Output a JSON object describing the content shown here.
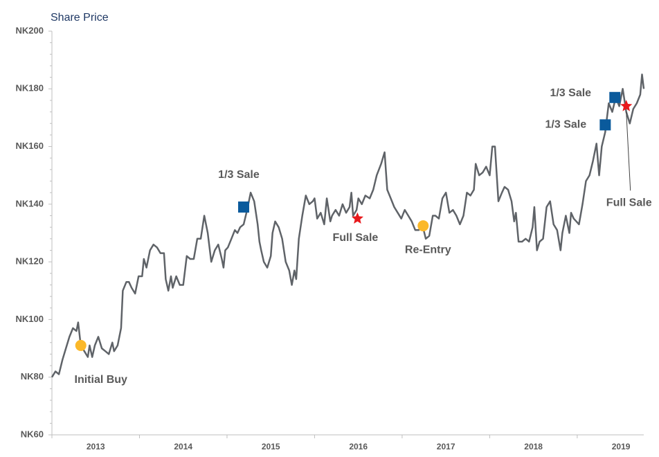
{
  "chart_data": {
    "type": "line",
    "title": "Share Price",
    "color": "#5f6368",
    "x": [
      2013.0,
      2013.04,
      2013.08,
      2013.12,
      2013.16,
      2013.2,
      2013.24,
      2013.28,
      2013.3,
      2013.33,
      2013.37,
      2013.41,
      2013.43,
      2013.46,
      2013.49,
      2013.53,
      2013.57,
      2013.61,
      2013.65,
      2013.69,
      2013.71,
      2013.75,
      2013.79,
      2013.81,
      2013.85,
      2013.88,
      2013.91,
      2013.95,
      2013.99,
      2014.03,
      2014.05,
      2014.08,
      2014.12,
      2014.16,
      2014.2,
      2014.24,
      2014.28,
      2014.3,
      2014.33,
      2014.36,
      2014.38,
      2014.42,
      2014.46,
      2014.5,
      2014.54,
      2014.58,
      2014.62,
      2014.66,
      2014.7,
      2014.74,
      2014.78,
      2014.82,
      2014.86,
      2014.9,
      2014.94,
      2014.96,
      2014.98,
      2015.01,
      2015.05,
      2015.09,
      2015.12,
      2015.15,
      2015.19,
      2015.23,
      2015.27,
      2015.31,
      2015.35,
      2015.37,
      2015.39,
      2015.42,
      2015.46,
      2015.5,
      2015.52,
      2015.55,
      2015.59,
      2015.63,
      2015.67,
      2015.71,
      2015.74,
      2015.77,
      2015.79,
      2015.82,
      2015.86,
      2015.9,
      2015.94,
      2015.98,
      2016.0,
      2016.03,
      2016.07,
      2016.11,
      2016.14,
      2016.18,
      2016.2,
      2016.24,
      2016.28,
      2016.32,
      2016.36,
      2016.4,
      2016.42,
      2016.44,
      2016.48,
      2016.5,
      2016.54,
      2016.58,
      2016.63,
      2016.67,
      2016.71,
      2016.76,
      2016.8,
      2016.83,
      2016.87,
      2016.91,
      2016.95,
      2016.99,
      2017.03,
      2017.07,
      2017.11,
      2017.15,
      2017.19,
      2017.23,
      2017.27,
      2017.31,
      2017.35,
      2017.38,
      2017.42,
      2017.46,
      2017.5,
      2017.54,
      2017.58,
      2017.62,
      2017.66,
      2017.7,
      2017.74,
      2017.78,
      2017.82,
      2017.84,
      2017.88,
      2017.92,
      2017.96,
      2018.0,
      2018.03,
      2018.06,
      2018.1,
      2018.14,
      2018.17,
      2018.21,
      2018.25,
      2018.28,
      2018.3,
      2018.33,
      2018.37,
      2018.41,
      2018.45,
      2018.49,
      2018.51,
      2018.54,
      2018.57,
      2018.61,
      2018.65,
      2018.69,
      2018.73,
      2018.77,
      2018.81,
      2018.83,
      2018.87,
      2018.91,
      2018.93,
      2018.96,
      2018.99,
      2019.02,
      2019.06,
      2019.1,
      2019.14,
      2019.18,
      2019.22,
      2019.25,
      2019.28,
      2019.32,
      2019.36,
      2019.4,
      2019.44,
      2019.48,
      2019.52,
      2019.56,
      2019.6,
      2019.64,
      2019.68,
      2019.72,
      2019.74,
      2019.76
    ],
    "values": [
      80,
      82,
      81,
      86,
      90,
      94,
      97,
      96,
      99,
      91,
      89,
      87,
      91,
      87,
      91,
      94,
      90,
      89,
      88,
      92,
      89,
      91,
      97,
      110,
      113,
      113,
      111,
      109,
      115,
      115,
      121,
      118,
      124,
      126,
      125,
      123,
      123,
      114,
      110,
      115,
      111,
      115,
      112,
      112,
      122,
      121,
      121,
      128,
      128,
      136,
      130,
      120,
      124,
      126,
      121,
      118,
      124,
      125,
      128,
      131,
      130,
      132,
      133,
      138,
      144,
      141,
      133,
      127,
      124,
      120,
      118,
      122,
      130,
      134,
      132,
      128,
      120,
      117,
      112,
      117,
      114,
      128,
      136,
      143,
      140,
      141,
      142,
      135,
      137,
      133,
      142,
      134,
      136,
      138,
      136,
      140,
      137,
      139,
      144,
      136,
      138,
      142,
      140,
      143,
      142,
      145,
      150,
      154,
      158,
      145,
      142,
      139,
      137,
      135,
      138,
      136,
      134,
      131,
      131,
      133,
      128,
      129,
      136,
      136,
      135,
      142,
      144,
      137,
      138,
      136,
      133,
      136,
      144,
      143,
      145,
      154,
      150,
      151,
      153,
      150,
      160,
      160,
      141,
      144,
      146,
      145,
      141,
      134,
      137,
      127,
      127,
      128,
      127,
      132,
      139,
      124,
      127,
      128,
      139,
      141,
      133,
      131,
      124,
      130,
      136,
      130,
      137,
      135,
      134,
      133,
      140,
      148,
      150,
      155,
      161,
      150,
      160,
      165,
      175,
      172,
      177,
      174,
      180,
      172,
      168,
      173,
      175,
      178,
      185,
      180
    ],
    "xlim": [
      2013,
      2019.76
    ],
    "xticks": [
      {
        "value": 2013.5,
        "label": "2013"
      },
      {
        "value": 2014.5,
        "label": "2014"
      },
      {
        "value": 2015.5,
        "label": "2015"
      },
      {
        "value": 2016.5,
        "label": "2016"
      },
      {
        "value": 2017.5,
        "label": "2017"
      },
      {
        "value": 2018.5,
        "label": "2018"
      },
      {
        "value": 2019.5,
        "label": "2019"
      }
    ],
    "ylim": [
      60,
      200
    ],
    "yticks": [
      {
        "value": 60,
        "label": "NK60"
      },
      {
        "value": 80,
        "label": "NK80"
      },
      {
        "value": 100,
        "label": "NK100"
      },
      {
        "value": 120,
        "label": "NK120"
      },
      {
        "value": 140,
        "label": "NK140"
      },
      {
        "value": 160,
        "label": "NK160"
      },
      {
        "value": 180,
        "label": "NK180"
      },
      {
        "value": 200,
        "label": "NK200"
      }
    ],
    "events": [
      {
        "label": "Initial Buy",
        "x": 2013.33,
        "y": 91,
        "marker": "circle",
        "color": "#fbb829"
      },
      {
        "label": "1/3 Sale",
        "x": 2015.19,
        "y": 139,
        "marker": "square",
        "color": "#0a5a9c"
      },
      {
        "label": "Full Sale",
        "x": 2016.49,
        "y": 135,
        "marker": "star",
        "color": "#e8191c"
      },
      {
        "label": "Re-Entry",
        "x": 2017.24,
        "y": 132.5,
        "marker": "circle",
        "color": "#fbb829"
      },
      {
        "label": "1/3 Sale",
        "x": 2019.32,
        "y": 167.5,
        "marker": "square",
        "color": "#0a5a9c"
      },
      {
        "label": "1/3 Sale",
        "x": 2019.43,
        "y": 177,
        "marker": "square",
        "color": "#0a5a9c"
      },
      {
        "label": "Full Sale",
        "x": 2019.56,
        "y": 174,
        "marker": "star",
        "color": "#e8191c"
      }
    ]
  }
}
